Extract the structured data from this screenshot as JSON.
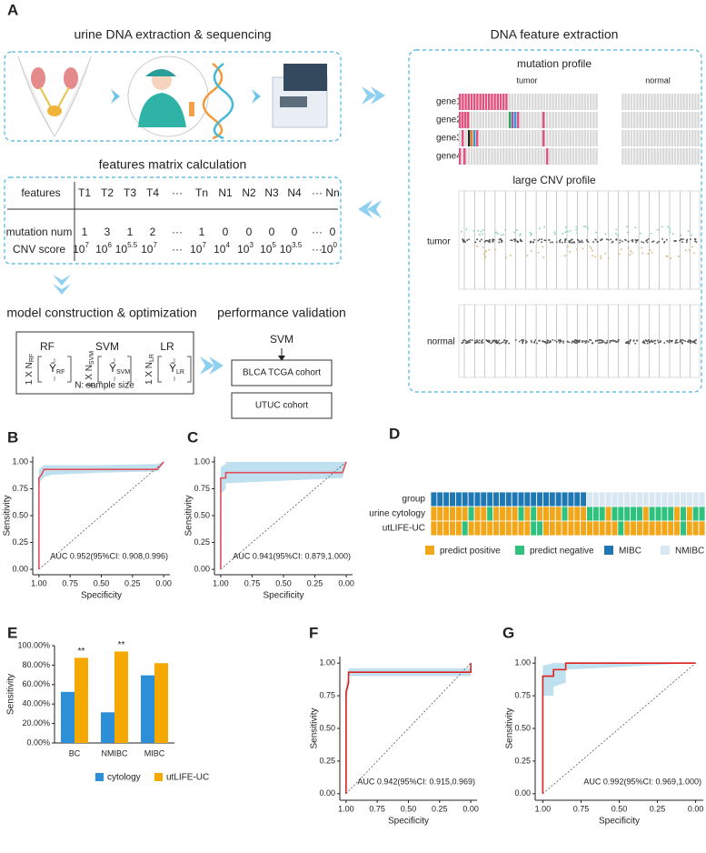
{
  "panel_a": {
    "label": "A",
    "sequencing": {
      "title": "urine DNA extraction & sequencing"
    },
    "feature_extraction": {
      "title": "DNA feature extraction",
      "mutation_title": "mutation profile",
      "tumor": "tumor",
      "normal": "normal",
      "genes": [
        "gene1",
        "gene2",
        "gene3",
        "gene4"
      ],
      "cnv_title": "large CNV profile",
      "cnv_rows": [
        "tumor",
        "normal"
      ]
    },
    "matrix": {
      "title": "features matrix calculation",
      "header": [
        "features",
        "T1",
        "T2",
        "T3",
        "T4",
        "···",
        "Tn",
        "N1",
        "N2",
        "N3",
        "N4",
        "···",
        "Nn"
      ],
      "rows": [
        {
          "label": "mutation num",
          "cells": [
            "1",
            "3",
            "1",
            "2",
            "···",
            "1",
            "0",
            "0",
            "0",
            "0",
            "···",
            "0"
          ]
        },
        {
          "label": "CNV score",
          "cells": [
            {
              "base": "10",
              "exp": "7"
            },
            {
              "base": "10",
              "exp": "6"
            },
            {
              "base": "10",
              "exp": "5.5"
            },
            {
              "base": "10",
              "exp": "7"
            },
            "···",
            {
              "base": "10",
              "exp": "7"
            },
            {
              "base": "10",
              "exp": "4"
            },
            {
              "base": "10",
              "exp": "3"
            },
            {
              "base": "10",
              "exp": "5"
            },
            {
              "base": "10",
              "exp": "3.5"
            },
            "···",
            {
              "base": "10",
              "exp": "0"
            }
          ]
        }
      ]
    },
    "model": {
      "title": "model construction & optimization",
      "models": [
        {
          "name": "RF",
          "dimension": "1 X N",
          "subscript": "RF",
          "estimate": "Ŷ"
        },
        {
          "name": "SVM",
          "dimension": "1 X N",
          "subscript": "SVM",
          "estimate": "Ŷ"
        },
        {
          "name": "LR",
          "dimension": "1 X N",
          "subscript": "LR",
          "estimate": "Ŷ"
        }
      ],
      "note": "N: sample size"
    },
    "validation": {
      "title": "performance validation",
      "model": "SVM",
      "cohorts": [
        "BLCA TCGA cohort",
        "UTUC cohort"
      ]
    }
  },
  "chart_data": [
    {
      "type": "line",
      "label": "B",
      "xlabel": "Specificity",
      "ylabel": "Sensitivity",
      "annotation": "AUC 0.952(95%CI: 0.908,0.996)",
      "xlim": [
        1.05,
        -0.05
      ],
      "ylim": [
        -0.05,
        1.05
      ],
      "xticks": [
        {
          "value": 1,
          "label": "1.00"
        },
        {
          "value": 0.75,
          "label": "0.75"
        },
        {
          "value": 0.5,
          "label": "0.50"
        },
        {
          "value": 0.25,
          "label": "0.25"
        },
        {
          "value": 0,
          "label": "0.00"
        }
      ],
      "yticks": [
        {
          "value": 0,
          "label": "0.00"
        },
        {
          "value": 0.25,
          "label": "0.25"
        },
        {
          "value": 0.5,
          "label": "0.50"
        },
        {
          "value": 0.75,
          "label": "0.75"
        },
        {
          "value": 1,
          "label": "1.00"
        }
      ],
      "x": [
        1.0,
        1.0,
        0.98,
        0.96,
        0.9,
        0.5,
        0.05,
        0.0
      ],
      "series": [
        {
          "color": "#e0505a",
          "values": [
            0,
            0.85,
            0.88,
            0.93,
            0.93,
            0.93,
            0.93,
            1.0
          ]
        }
      ],
      "band": {
        "color": "#bfe0ee",
        "lower": [
          0,
          0.8,
          0.83,
          0.86,
          0.88,
          0.9,
          0.91,
          1.0
        ],
        "upper": [
          0,
          0.93,
          0.95,
          0.97,
          0.97,
          0.97,
          0.98,
          1.0
        ]
      }
    },
    {
      "type": "line",
      "label": "C",
      "xlabel": "Specificity",
      "ylabel": "Sensitivity",
      "annotation": "AUC 0.941(95%CI: 0.879,1.000)",
      "xlim": [
        1.05,
        -0.05
      ],
      "ylim": [
        -0.05,
        1.05
      ],
      "xticks": [
        {
          "value": 1,
          "label": "1.00"
        },
        {
          "value": 0.75,
          "label": "0.75"
        },
        {
          "value": 0.5,
          "label": "0.50"
        },
        {
          "value": 0.25,
          "label": "0.25"
        },
        {
          "value": 0,
          "label": "0.00"
        }
      ],
      "yticks": [
        {
          "value": 0,
          "label": "0.00"
        },
        {
          "value": 0.25,
          "label": "0.25"
        },
        {
          "value": 0.5,
          "label": "0.50"
        },
        {
          "value": 0.75,
          "label": "0.75"
        },
        {
          "value": 1,
          "label": "1.00"
        }
      ],
      "x": [
        1.0,
        1.0,
        0.96,
        0.96,
        0.03,
        0.0
      ],
      "series": [
        {
          "color": "#e0505a",
          "values": [
            0,
            0.85,
            0.85,
            0.9,
            0.9,
            1.0
          ]
        }
      ],
      "band": {
        "color": "#bfe0ee",
        "lower": [
          0,
          0.7,
          0.75,
          0.8,
          0.85,
          1.0
        ],
        "upper": [
          0,
          0.95,
          0.98,
          1.0,
          1.0,
          1.0
        ]
      }
    },
    {
      "type": "heatmap",
      "label": "D",
      "rows": [
        "group",
        "urine cytology",
        "utLIFE-UC"
      ],
      "legend": [
        {
          "name": "predict positive",
          "color": "#f2a71b"
        },
        {
          "name": "predict negative",
          "color": "#2ec27e"
        },
        {
          "name": "MIBC",
          "color": "#1f78b4"
        },
        {
          "name": "NMIBC",
          "color": "#d9e7f2"
        }
      ],
      "values": [
        [
          2,
          2,
          2,
          2,
          2,
          2,
          2,
          2,
          2,
          2,
          2,
          2,
          2,
          2,
          2,
          2,
          2,
          2,
          2,
          2,
          2,
          2,
          2,
          2,
          2,
          3,
          3,
          3,
          3,
          3,
          3,
          3,
          3,
          3,
          3,
          3,
          3,
          3,
          3,
          3,
          3,
          3,
          3,
          3
        ],
        [
          0,
          0,
          0,
          0,
          0,
          0,
          1,
          0,
          0,
          1,
          0,
          0,
          0,
          0,
          1,
          0,
          1,
          0,
          0,
          0,
          0,
          1,
          0,
          0,
          0,
          1,
          1,
          1,
          0,
          1,
          1,
          1,
          1,
          1,
          0,
          1,
          1,
          1,
          1,
          0,
          1,
          0,
          1,
          1
        ],
        [
          0,
          0,
          0,
          0,
          0,
          1,
          0,
          0,
          0,
          0,
          0,
          0,
          0,
          0,
          0,
          0,
          1,
          1,
          0,
          0,
          0,
          0,
          0,
          0,
          0,
          0,
          0,
          0,
          0,
          0,
          1,
          0,
          0,
          0,
          0,
          0,
          0,
          0,
          0,
          0,
          1,
          0,
          0,
          0
        ]
      ]
    },
    {
      "type": "bar",
      "label": "E",
      "ylabel": "Sensitivity",
      "categories": [
        "BC",
        "NMIBC",
        "MIBC"
      ],
      "series": [
        {
          "name": "cytology",
          "color": "#2c8fd8",
          "values": [
            52.5,
            31.5,
            69.5
          ]
        },
        {
          "name": "utLIFE-UC",
          "color": "#f5a800",
          "values": [
            87.5,
            94,
            82
          ]
        }
      ],
      "ylim": [
        0,
        100
      ],
      "yticks": [
        {
          "value": 0,
          "label": "0.00%"
        },
        {
          "value": 20,
          "label": "20.00%"
        },
        {
          "value": 40,
          "label": "40.00%"
        },
        {
          "value": 60,
          "label": "60.00%"
        },
        {
          "value": 80,
          "label": "80.00%"
        },
        {
          "value": 100,
          "label": "100.00%"
        }
      ],
      "annotations": [
        {
          "text": "**",
          "x": "BC"
        },
        {
          "text": "**",
          "x": "NMIBC"
        }
      ]
    },
    {
      "type": "line",
      "label": "F",
      "xlabel": "Specificity",
      "ylabel": "Sensitivity",
      "annotation": "AUC 0.942(95%CI: 0.915,0.969)",
      "xlim": [
        1.05,
        -0.05
      ],
      "ylim": [
        -0.05,
        1.05
      ],
      "xticks": [
        {
          "value": 1,
          "label": "1.00"
        },
        {
          "value": 0.75,
          "label": "0.75"
        },
        {
          "value": 0.5,
          "label": "0.50"
        },
        {
          "value": 0.25,
          "label": "0.25"
        },
        {
          "value": 0,
          "label": "0.00"
        }
      ],
      "yticks": [
        {
          "value": 0,
          "label": "0.00"
        },
        {
          "value": 0.25,
          "label": "0.25"
        },
        {
          "value": 0.5,
          "label": "0.50"
        },
        {
          "value": 0.75,
          "label": "0.75"
        },
        {
          "value": 1,
          "label": "1.00"
        }
      ],
      "x": [
        1.0,
        1.0,
        0.98,
        0.98,
        0.0,
        0.0
      ],
      "series": [
        {
          "color": "#e02020",
          "values": [
            0,
            0.78,
            0.85,
            0.93,
            0.93,
            1.0
          ]
        }
      ],
      "band": {
        "color": "#bfe0ee",
        "lower": [
          0,
          0.7,
          0.8,
          0.9,
          0.9,
          1.0
        ],
        "upper": [
          0,
          0.85,
          0.9,
          0.96,
          0.96,
          1.0
        ]
      }
    },
    {
      "type": "line",
      "label": "G",
      "xlabel": "Specificity",
      "ylabel": "Sensitivity",
      "annotation": "AUC 0.992(95%CI: 0.969,1.000)",
      "xlim": [
        1.05,
        -0.05
      ],
      "ylim": [
        -0.05,
        1.05
      ],
      "xticks": [
        {
          "value": 1,
          "label": "1.00"
        },
        {
          "value": 0.75,
          "label": "0.75"
        },
        {
          "value": 0.5,
          "label": "0.50"
        },
        {
          "value": 0.25,
          "label": "0.25"
        },
        {
          "value": 0,
          "label": "0.00"
        }
      ],
      "yticks": [
        {
          "value": 0,
          "label": "0.00"
        },
        {
          "value": 0.25,
          "label": "0.25"
        },
        {
          "value": 0.5,
          "label": "0.50"
        },
        {
          "value": 0.75,
          "label": "0.75"
        },
        {
          "value": 1,
          "label": "1.00"
        }
      ],
      "x": [
        1.0,
        1.0,
        0.93,
        0.93,
        0.85,
        0.85,
        0.0
      ],
      "series": [
        {
          "color": "#e02020",
          "values": [
            0,
            0.9,
            0.9,
            0.95,
            0.95,
            1.0,
            1.0
          ]
        }
      ],
      "band": {
        "color": "#bfe0ee",
        "lower": [
          0,
          0.75,
          0.75,
          0.82,
          0.85,
          0.95,
          1.0
        ],
        "upper": [
          0,
          0.98,
          1.0,
          1.0,
          1.0,
          1.0,
          1.0
        ]
      }
    }
  ]
}
